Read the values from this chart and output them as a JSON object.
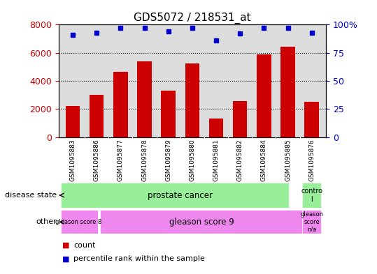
{
  "title": "GDS5072 / 218531_at",
  "samples": [
    "GSM1095883",
    "GSM1095886",
    "GSM1095877",
    "GSM1095878",
    "GSM1095879",
    "GSM1095880",
    "GSM1095881",
    "GSM1095882",
    "GSM1095884",
    "GSM1095885",
    "GSM1095876"
  ],
  "counts": [
    2200,
    3000,
    4650,
    5400,
    3300,
    5250,
    1300,
    2550,
    5900,
    6450,
    2500
  ],
  "percentile_ranks": [
    91,
    93,
    97,
    97,
    94,
    97,
    86,
    92,
    97,
    97,
    93
  ],
  "ylim_left": [
    0,
    8000
  ],
  "ylim_right": [
    0,
    100
  ],
  "yticks_left": [
    0,
    2000,
    4000,
    6000,
    8000
  ],
  "yticks_right": [
    0,
    25,
    50,
    75,
    100
  ],
  "bar_color": "#cc0000",
  "dot_color": "#0000cc",
  "plot_bg_color": "#dddddd",
  "tick_label_bg": "#cccccc",
  "disease_state_green": "#99ee99",
  "other_magenta": "#ee88ee",
  "disease_state_row_label": "disease state",
  "other_row_label": "other",
  "legend_count": "count",
  "legend_percentile": "percentile rank within the sample"
}
